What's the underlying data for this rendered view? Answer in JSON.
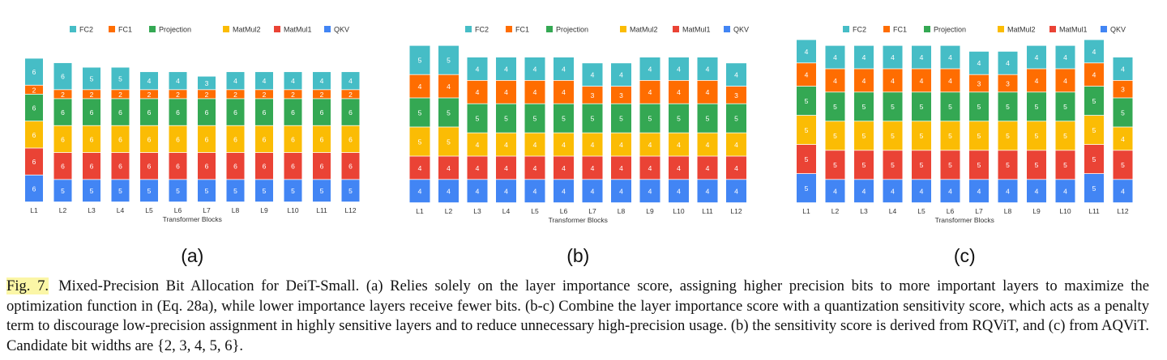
{
  "chart_data": [
    {
      "type": "bar",
      "stacked": true,
      "panel_label": "(a)",
      "xlabel": "Transformer Blocks",
      "ylabel": "",
      "categories": [
        "L1",
        "L2",
        "L3",
        "L4",
        "L5",
        "L6",
        "L7",
        "L8",
        "L9",
        "L10",
        "L11",
        "L12"
      ],
      "series": [
        {
          "name": "QKV",
          "values": [
            6,
            5,
            5,
            5,
            5,
            5,
            5,
            5,
            5,
            5,
            5,
            5
          ]
        },
        {
          "name": "MatMul1",
          "values": [
            6,
            6,
            6,
            6,
            6,
            6,
            6,
            6,
            6,
            6,
            6,
            6
          ]
        },
        {
          "name": "MatMul2",
          "values": [
            6,
            6,
            6,
            6,
            6,
            6,
            6,
            6,
            6,
            6,
            6,
            6
          ]
        },
        {
          "name": "Projection",
          "values": [
            6,
            6,
            6,
            6,
            6,
            6,
            6,
            6,
            6,
            6,
            6,
            6
          ]
        },
        {
          "name": "FC1",
          "values": [
            2,
            2,
            2,
            2,
            2,
            2,
            2,
            2,
            2,
            2,
            2,
            2
          ]
        },
        {
          "name": "FC2",
          "values": [
            6,
            6,
            5,
            5,
            4,
            4,
            3,
            4,
            4,
            4,
            4,
            4
          ]
        }
      ],
      "legend": [
        "FC2",
        "FC1",
        "Projection",
        "MatMul2",
        "MatMul1",
        "QKV"
      ],
      "legend_position": "top"
    },
    {
      "type": "bar",
      "stacked": true,
      "panel_label": "(b)",
      "xlabel": "Transformer Blocks",
      "ylabel": "",
      "categories": [
        "L1",
        "L2",
        "L3",
        "L4",
        "L5",
        "L6",
        "L7",
        "L8",
        "L9",
        "L10",
        "L11",
        "L12"
      ],
      "series": [
        {
          "name": "QKV",
          "values": [
            4,
            4,
            4,
            4,
            4,
            4,
            4,
            4,
            4,
            4,
            4,
            4
          ]
        },
        {
          "name": "MatMul1",
          "values": [
            4,
            4,
            4,
            4,
            4,
            4,
            4,
            4,
            4,
            4,
            4,
            4
          ]
        },
        {
          "name": "MatMul2",
          "values": [
            5,
            5,
            4,
            4,
            4,
            4,
            4,
            4,
            4,
            4,
            4,
            4
          ]
        },
        {
          "name": "Projection",
          "values": [
            5,
            5,
            5,
            5,
            5,
            5,
            5,
            5,
            5,
            5,
            5,
            5
          ]
        },
        {
          "name": "FC1",
          "values": [
            4,
            4,
            4,
            4,
            4,
            4,
            3,
            3,
            4,
            4,
            4,
            3
          ]
        },
        {
          "name": "FC2",
          "values": [
            5,
            5,
            4,
            4,
            4,
            4,
            4,
            4,
            4,
            4,
            4,
            4
          ]
        }
      ],
      "legend": [
        "FC2",
        "FC1",
        "Projection",
        "MatMul2",
        "MatMul1",
        "QKV"
      ],
      "legend_position": "top"
    },
    {
      "type": "bar",
      "stacked": true,
      "panel_label": "(c)",
      "xlabel": "Transformer Blocks",
      "ylabel": "",
      "categories": [
        "L1",
        "L2",
        "L3",
        "L4",
        "L5",
        "L6",
        "L7",
        "L8",
        "L9",
        "L10",
        "L11",
        "L12"
      ],
      "series": [
        {
          "name": "QKV",
          "values": [
            5,
            4,
            4,
            4,
            4,
            4,
            4,
            4,
            4,
            4,
            5,
            4
          ]
        },
        {
          "name": "MatMul1",
          "values": [
            5,
            5,
            5,
            5,
            5,
            5,
            5,
            5,
            5,
            5,
            5,
            5
          ]
        },
        {
          "name": "MatMul2",
          "values": [
            5,
            5,
            5,
            5,
            5,
            5,
            5,
            5,
            5,
            5,
            5,
            4
          ]
        },
        {
          "name": "Projection",
          "values": [
            5,
            5,
            5,
            5,
            5,
            5,
            5,
            5,
            5,
            5,
            5,
            5
          ]
        },
        {
          "name": "FC1",
          "values": [
            4,
            4,
            4,
            4,
            4,
            4,
            3,
            3,
            4,
            4,
            4,
            3
          ]
        },
        {
          "name": "FC2",
          "values": [
            4,
            4,
            4,
            4,
            4,
            4,
            4,
            4,
            4,
            4,
            4,
            4
          ]
        }
      ],
      "legend": [
        "FC2",
        "FC1",
        "Projection",
        "MatMul2",
        "MatMul1",
        "QKV"
      ],
      "legend_position": "top"
    }
  ],
  "colors": {
    "QKV": "#4285f4",
    "MatMul1": "#ea4335",
    "MatMul2": "#fbbc04",
    "Projection": "#34a853",
    "FC1": "#ff6d01",
    "FC2": "#46bdc6"
  },
  "caption": {
    "label": "Fig. 7.",
    "text": "Mixed-Precision Bit Allocation for DeiT-Small. (a) Relies solely on the layer importance score, assigning higher precision bits to more important layers to maximize the optimization function in (Eq. 28a), while lower importance layers receive fewer bits. (b-c) Combine the layer importance score with a quantization sensitivity score, which acts as a penalty term to discourage low-precision assignment in highly sensitive layers and to reduce unnecessary high-precision usage. (b) the sensitivity score is derived from RQViT, and (c) from AQViT. Candidate bit widths are {2, 3, 4, 5, 6}."
  }
}
